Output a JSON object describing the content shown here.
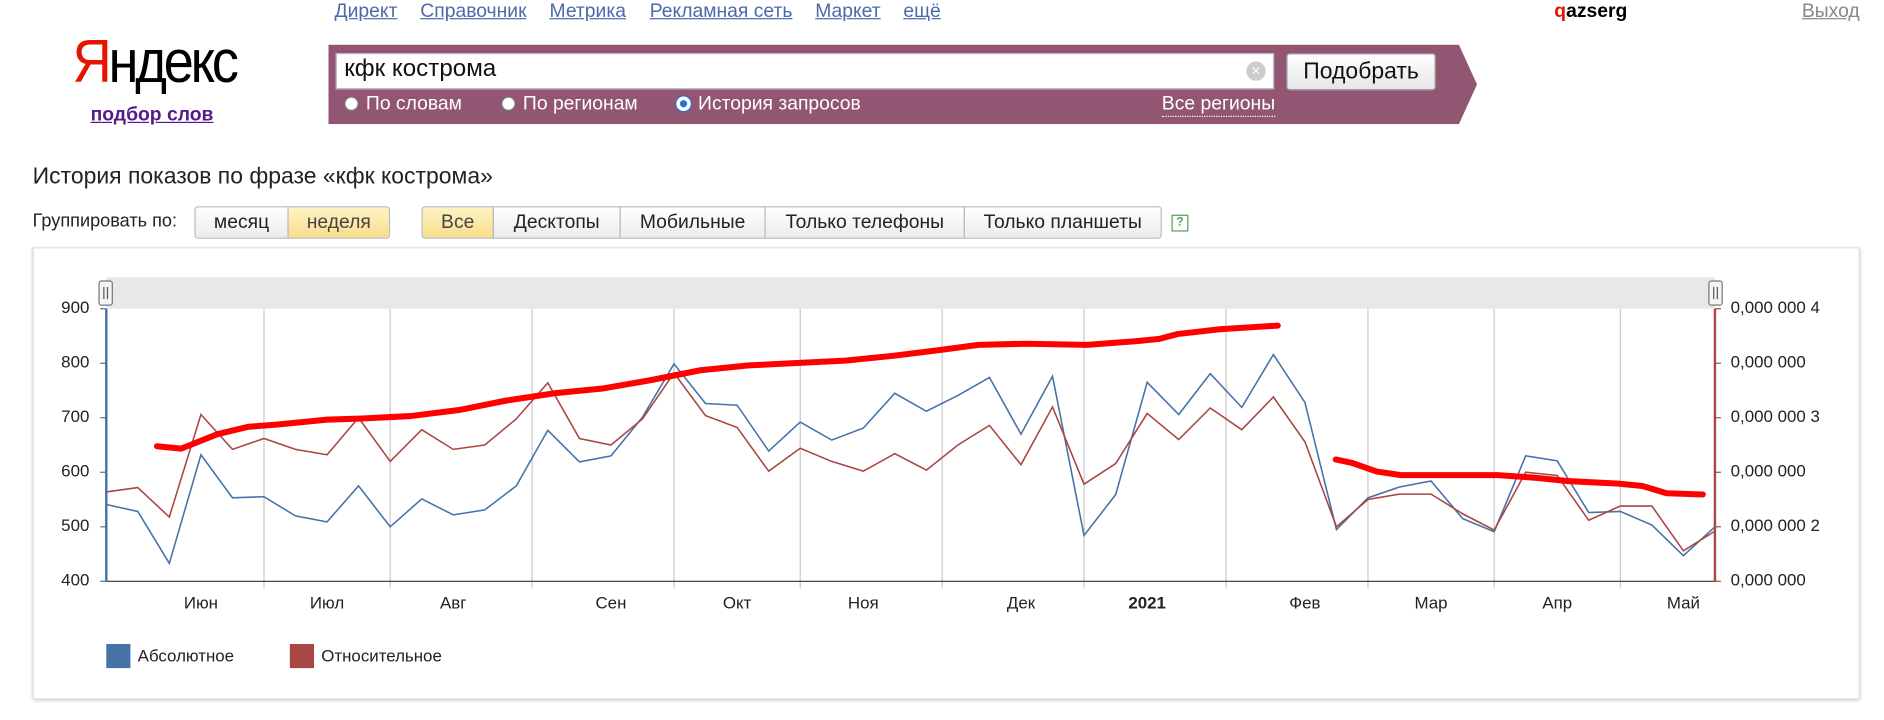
{
  "nav": [
    "Директ",
    "Справочник",
    "Метрика",
    "Рекламная сеть",
    "Маркет",
    "ещё"
  ],
  "user": "qazserg",
  "logout": "Выход",
  "logo": "Яндекс",
  "logo_subtitle": "подбор слов",
  "search": {
    "query": "кфк кострома",
    "button": "Подобрать",
    "modes": [
      "По словам",
      "По регионам",
      "История запросов"
    ],
    "selected_mode": 2,
    "regions": "Все регионы"
  },
  "heading": "История показов по фразе «кфк кострома»",
  "group_label": "Группировать по:",
  "group_options": [
    "месяц",
    "неделя"
  ],
  "group_selected": 1,
  "device_options": [
    "Все",
    "Десктопы",
    "Мобильные",
    "Только телефоны",
    "Только планшеты"
  ],
  "device_selected": 0,
  "help": "?",
  "chart_data": {
    "type": "line",
    "categories": [
      null,
      null,
      null,
      "Июн",
      null,
      null,
      null,
      "Июл",
      null,
      null,
      null,
      "Авг",
      null,
      null,
      null,
      null,
      "Сен",
      null,
      null,
      null,
      "Окт",
      null,
      null,
      null,
      "Ноя",
      null,
      null,
      null,
      null,
      "Дек",
      null,
      null,
      null,
      "2021",
      null,
      null,
      null,
      null,
      "Фев",
      null,
      null,
      null,
      "Мар",
      null,
      null,
      null,
      "Апр",
      null,
      null,
      null,
      "Май",
      null
    ],
    "series": [
      {
        "name": "Абсолютное",
        "color": "#4572a7",
        "values": [
          541,
          528,
          433,
          632,
          553,
          555,
          520,
          509,
          575,
          500,
          551,
          522,
          531,
          575,
          677,
          619,
          630,
          701,
          799,
          726,
          723,
          639,
          692,
          659,
          681,
          745,
          712,
          741,
          774,
          670,
          776,
          484,
          559,
          765,
          706,
          781,
          719,
          816,
          728,
          495,
          553,
          573,
          584,
          515,
          491,
          630,
          621,
          526,
          528,
          503,
          447,
          500
        ]
      },
      {
        "name": "Относительное",
        "color": "#aa4643",
        "axis": "y2",
        "values": [
          2.32e-07,
          2.36e-07,
          2.09e-07,
          3.03e-07,
          2.71e-07,
          2.81e-07,
          2.71e-07,
          2.66e-07,
          3e-07,
          2.6e-07,
          2.89e-07,
          2.71e-07,
          2.75e-07,
          2.99e-07,
          3.32e-07,
          2.81e-07,
          2.75e-07,
          2.99e-07,
          3.41e-07,
          3.02e-07,
          2.91e-07,
          2.51e-07,
          2.72e-07,
          2.6e-07,
          2.51e-07,
          2.67e-07,
          2.52e-07,
          2.75e-07,
          2.93e-07,
          2.57e-07,
          3.1e-07,
          2.39e-07,
          2.58e-07,
          3.04e-07,
          2.8e-07,
          3.09e-07,
          2.89e-07,
          3.19e-07,
          2.78e-07,
          2e-07,
          2.25e-07,
          2.3e-07,
          2.3e-07,
          2.12e-07,
          1.97e-07,
          2.5e-07,
          2.47e-07,
          2.06e-07,
          2.19e-07,
          2.19e-07,
          1.78e-07,
          1.96e-07
        ]
      }
    ],
    "ylim": [
      400,
      900
    ],
    "yticks": [
      400,
      500,
      600,
      700,
      800,
      900
    ],
    "y2lim": [
      1.5e-07,
      4e-07
    ],
    "y2ticks": [
      {
        "value": 1.5e-07,
        "label": "0,000 000"
      },
      {
        "value": 2e-07,
        "label": "0,000 000 2"
      },
      {
        "value": 2.5e-07,
        "label": "0,000 000"
      },
      {
        "value": 3e-07,
        "label": "0,000 000 3"
      },
      {
        "value": 3.5e-07,
        "label": "0,000 000"
      },
      {
        "value": 4e-07,
        "label": "0,000 000 4"
      }
    ],
    "grid": "x",
    "legend": "bottom-left"
  }
}
